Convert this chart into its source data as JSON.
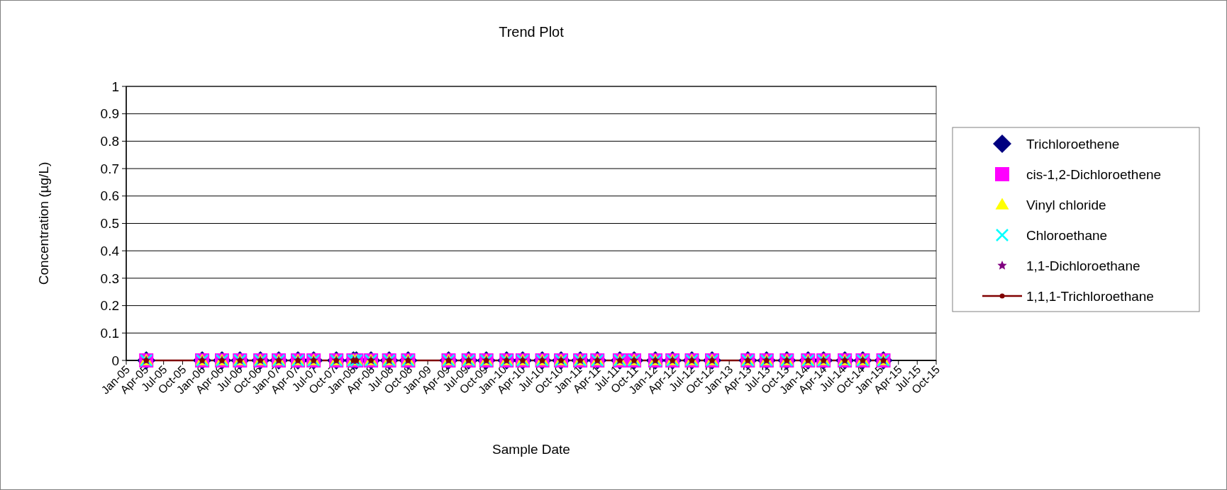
{
  "chart_data": {
    "type": "line",
    "title": "Trend Plot",
    "xlabel": "Sample Date",
    "ylabel": "Concentration (µg/L)",
    "x": [
      "2005-04-08",
      "2006-01-04",
      "2006-04-10",
      "2006-07-06",
      "2006-10-13",
      "2007-01-10",
      "2007-04-13",
      "2007-06-28",
      "2007-10-16",
      "2008-01-07",
      "2008-01-21",
      "2008-04-01",
      "2008-06-28",
      "2008-09-28",
      "2009-04-12",
      "2009-07-18",
      "2009-10-12",
      "2010-01-18",
      "2010-04-06",
      "2010-07-10",
      "2010-10-09",
      "2011-01-10",
      "2011-04-03",
      "2011-07-21",
      "2011-09-28",
      "2012-01-09",
      "2012-04-01",
      "2012-07-04",
      "2012-10-10",
      "2013-04-01",
      "2013-07-01",
      "2013-10-07",
      "2014-01-18",
      "2014-04-03",
      "2014-07-15",
      "2014-10-10",
      "2015-01-18"
    ],
    "series": [
      {
        "name": "Trichloroethene",
        "type": "scatter",
        "color": "#000080",
        "marker": "diamond",
        "values": [
          0,
          0,
          0,
          0,
          0,
          0,
          0,
          0,
          0,
          0,
          0,
          0,
          0,
          0,
          0,
          0,
          0,
          0,
          0,
          0,
          0,
          0,
          0,
          0,
          0,
          0,
          0,
          0,
          0,
          0,
          0,
          0,
          0,
          0,
          0,
          0,
          0
        ]
      },
      {
        "name": "cis-1,2-Dichloroethene",
        "type": "scatter",
        "color": "#ff00ff",
        "marker": "square",
        "values": [
          0,
          0,
          0,
          0,
          0,
          0,
          0,
          0,
          0,
          0,
          0,
          0,
          0,
          0,
          0,
          0,
          0,
          0,
          0,
          0,
          0,
          0,
          0,
          0,
          0,
          0,
          0,
          0,
          0,
          0,
          0,
          0,
          0,
          0,
          0,
          0,
          0
        ]
      },
      {
        "name": "Vinyl chloride",
        "type": "scatter",
        "color": "#ffff00",
        "marker": "triangle",
        "values": [
          0,
          0,
          0,
          0,
          0,
          0,
          0,
          0,
          0,
          0,
          0,
          0,
          0,
          0,
          0,
          0,
          0,
          0,
          0,
          0,
          0,
          0,
          0,
          0,
          0,
          0,
          0,
          0,
          0,
          0,
          0,
          0,
          0,
          0,
          0,
          0,
          0
        ]
      },
      {
        "name": "Chloroethane",
        "type": "scatter",
        "color": "#00ffff",
        "marker": "cross",
        "values": [
          0,
          0,
          0,
          0,
          0,
          0,
          0,
          0,
          0,
          0,
          0,
          0,
          0,
          0,
          0,
          0,
          0,
          0,
          0,
          0,
          0,
          0,
          0,
          0,
          0,
          0,
          0,
          0,
          0,
          0,
          0,
          0,
          0,
          0,
          0,
          0,
          0
        ]
      },
      {
        "name": "1,1-Dichloroethane",
        "type": "scatter",
        "color": "#800080",
        "marker": "star",
        "values": [
          0,
          0,
          0,
          0,
          0,
          0,
          0,
          0,
          0,
          0,
          0,
          0,
          0,
          0,
          0,
          0,
          0,
          0,
          0,
          0,
          0,
          0,
          0,
          0,
          0,
          0,
          0,
          0,
          0,
          0,
          0,
          0,
          0,
          0,
          0,
          0,
          0
        ]
      },
      {
        "name": "1,1,1-Trichloroethane",
        "color": "#800000",
        "marker": "circle",
        "values": [
          0,
          0,
          0,
          0,
          0,
          0,
          0,
          0,
          0,
          0,
          0,
          0,
          0,
          0,
          0,
          0,
          0,
          0,
          0,
          0,
          0,
          0,
          0,
          0,
          0,
          0,
          0,
          0,
          0,
          0,
          0,
          0,
          0,
          0,
          0,
          0,
          0
        ]
      }
    ],
    "xlim": [
      "2005-01-01",
      "2015-10-01"
    ],
    "xticks": [
      {
        "value": "2005-01-01",
        "label": "Jan-05"
      },
      {
        "value": "2005-04-01",
        "label": "Apr-05"
      },
      {
        "value": "2005-07-01",
        "label": "Jul-05"
      },
      {
        "value": "2005-10-01",
        "label": "Oct-05"
      },
      {
        "value": "2006-01-01",
        "label": "Jan-06"
      },
      {
        "value": "2006-04-01",
        "label": "Apr-06"
      },
      {
        "value": "2006-07-01",
        "label": "Jul-06"
      },
      {
        "value": "2006-10-01",
        "label": "Oct-06"
      },
      {
        "value": "2007-01-01",
        "label": "Jan-07"
      },
      {
        "value": "2007-04-01",
        "label": "Apr-07"
      },
      {
        "value": "2007-07-01",
        "label": "Jul-07"
      },
      {
        "value": "2007-10-01",
        "label": "Oct-07"
      },
      {
        "value": "2008-01-01",
        "label": "Jan-08"
      },
      {
        "value": "2008-04-01",
        "label": "Apr-08"
      },
      {
        "value": "2008-07-01",
        "label": "Jul-08"
      },
      {
        "value": "2008-10-01",
        "label": "Oct-08"
      },
      {
        "value": "2009-01-01",
        "label": "Jan-09"
      },
      {
        "value": "2009-04-01",
        "label": "Apr-09"
      },
      {
        "value": "2009-07-01",
        "label": "Jul-09"
      },
      {
        "value": "2009-10-01",
        "label": "Oct-09"
      },
      {
        "value": "2010-01-01",
        "label": "Jan-10"
      },
      {
        "value": "2010-04-01",
        "label": "Apr-10"
      },
      {
        "value": "2010-07-01",
        "label": "Jul-10"
      },
      {
        "value": "2010-10-01",
        "label": "Oct-10"
      },
      {
        "value": "2011-01-01",
        "label": "Jan-11"
      },
      {
        "value": "2011-04-01",
        "label": "Apr-11"
      },
      {
        "value": "2011-07-01",
        "label": "Jul-11"
      },
      {
        "value": "2011-10-01",
        "label": "Oct-11"
      },
      {
        "value": "2012-01-01",
        "label": "Jan-12"
      },
      {
        "value": "2012-04-01",
        "label": "Apr-12"
      },
      {
        "value": "2012-07-01",
        "label": "Jul-12"
      },
      {
        "value": "2012-10-01",
        "label": "Oct-12"
      },
      {
        "value": "2013-01-01",
        "label": "Jan-13"
      },
      {
        "value": "2013-04-01",
        "label": "Apr-13"
      },
      {
        "value": "2013-07-01",
        "label": "Jul-13"
      },
      {
        "value": "2013-10-01",
        "label": "Oct-13"
      },
      {
        "value": "2014-01-01",
        "label": "Jan-14"
      },
      {
        "value": "2014-04-01",
        "label": "Apr-14"
      },
      {
        "value": "2014-07-01",
        "label": "Jul-14"
      },
      {
        "value": "2014-10-01",
        "label": "Oct-14"
      },
      {
        "value": "2015-01-01",
        "label": "Jan-15"
      },
      {
        "value": "2015-04-01",
        "label": "Apr-15"
      },
      {
        "value": "2015-07-01",
        "label": "Jul-15"
      },
      {
        "value": "2015-10-01",
        "label": "Oct-15"
      }
    ],
    "ylim": [
      0,
      1
    ],
    "yticks": [
      0,
      0.1,
      0.2,
      0.3,
      0.4,
      0.5,
      0.6,
      0.7,
      0.8,
      0.9,
      1
    ],
    "grid": "y",
    "legend": "right",
    "line_style": "solid"
  }
}
